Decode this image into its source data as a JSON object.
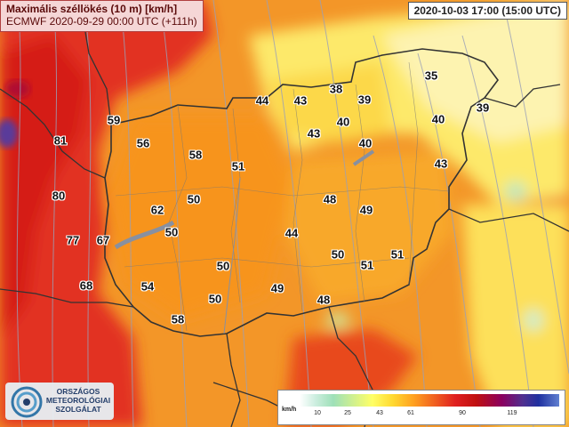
{
  "title": {
    "main": "Maximális széllökés (10 m) [km/h]",
    "sub": "ECMWF 2020-09-29 00:00 UTC (+111h)"
  },
  "valid_time": "2020-10-03 17:00 (15:00 UTC)",
  "logo": {
    "line1": "ORSZÁGOS",
    "line2": "METEOROLÓGIAI",
    "line3": "SZOLGÁLAT"
  },
  "legend": {
    "unit": "km/h",
    "ticks": [
      "10",
      "25",
      "43",
      "61",
      "90",
      "119"
    ]
  },
  "values": [
    {
      "id": "v1",
      "text": "35"
    },
    {
      "id": "v2",
      "text": "38"
    },
    {
      "id": "v3",
      "text": "39"
    },
    {
      "id": "v4",
      "text": "39"
    },
    {
      "id": "v5",
      "text": "44"
    },
    {
      "id": "v6",
      "text": "43"
    },
    {
      "id": "v7",
      "text": "40"
    },
    {
      "id": "v8",
      "text": "40"
    },
    {
      "id": "v9",
      "text": "59"
    },
    {
      "id": "v10",
      "text": "43"
    },
    {
      "id": "v11",
      "text": "81"
    },
    {
      "id": "v12",
      "text": "56"
    },
    {
      "id": "v13",
      "text": "40"
    },
    {
      "id": "v14",
      "text": "58"
    },
    {
      "id": "v15",
      "text": "43"
    },
    {
      "id": "v16",
      "text": "51"
    },
    {
      "id": "v17",
      "text": "80"
    },
    {
      "id": "v18",
      "text": "50"
    },
    {
      "id": "v19",
      "text": "48"
    },
    {
      "id": "v20",
      "text": "62"
    },
    {
      "id": "v21",
      "text": "49"
    },
    {
      "id": "v22",
      "text": "50"
    },
    {
      "id": "v23",
      "text": "44"
    },
    {
      "id": "v24",
      "text": "77"
    },
    {
      "id": "v25",
      "text": "67"
    },
    {
      "id": "v26",
      "text": "50"
    },
    {
      "id": "v27",
      "text": "51"
    },
    {
      "id": "v28",
      "text": "50"
    },
    {
      "id": "v29",
      "text": "51"
    },
    {
      "id": "v30",
      "text": "68"
    },
    {
      "id": "v31",
      "text": "54"
    },
    {
      "id": "v32",
      "text": "49"
    },
    {
      "id": "v33",
      "text": "50"
    },
    {
      "id": "v34",
      "text": "48"
    },
    {
      "id": "v35",
      "text": "58"
    }
  ],
  "colors": {
    "strong_red": "#e23022",
    "orange": "#f39628",
    "yellow": "#fde96a",
    "pale_yellow": "#fdf3b0",
    "green_zone": "#b6e8c6",
    "purple": "#5a3a9a"
  }
}
